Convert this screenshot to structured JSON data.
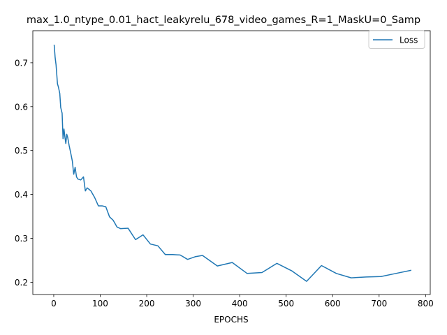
{
  "chart_data": {
    "type": "line",
    "title": "max_1.0_ntype_0.01_hact_leakyrelu_678_video_games_R=1_MaskU=0_Samp",
    "xlabel": "EPOCHS",
    "ylabel": "",
    "xlim": [
      -45,
      810
    ],
    "ylim": [
      0.172,
      0.773
    ],
    "xticks": [
      0,
      100,
      200,
      300,
      400,
      500,
      600,
      700,
      800
    ],
    "yticks": [
      0.2,
      0.3,
      0.4,
      0.5,
      0.6,
      0.7
    ],
    "grid": false,
    "legend_position": "upper right",
    "series": [
      {
        "name": "Loss",
        "color": "#1f77b4",
        "x": [
          1,
          3,
          5,
          8,
          10,
          13,
          15,
          18,
          20,
          22,
          24,
          26,
          28,
          30,
          33,
          36,
          40,
          43,
          46,
          49,
          52,
          58,
          64,
          68,
          72,
          80,
          88,
          96,
          104,
          112,
          120,
          128,
          136,
          144,
          160,
          176,
          192,
          208,
          224,
          240,
          256,
          272,
          288,
          304,
          320,
          352,
          384,
          416,
          448,
          480,
          512,
          544,
          576,
          608,
          640,
          672,
          704,
          736,
          768
        ],
        "y": [
          0.74,
          0.712,
          0.695,
          0.652,
          0.645,
          0.63,
          0.598,
          0.585,
          0.527,
          0.549,
          0.531,
          0.516,
          0.537,
          0.53,
          0.512,
          0.497,
          0.476,
          0.446,
          0.462,
          0.44,
          0.435,
          0.433,
          0.44,
          0.408,
          0.415,
          0.408,
          0.393,
          0.374,
          0.374,
          0.372,
          0.349,
          0.341,
          0.326,
          0.322,
          0.323,
          0.297,
          0.308,
          0.287,
          0.283,
          0.263,
          0.263,
          0.262,
          0.252,
          0.258,
          0.261,
          0.237,
          0.245,
          0.22,
          0.222,
          0.243,
          0.226,
          0.202,
          0.238,
          0.22,
          0.21,
          0.212,
          0.213,
          0.22,
          0.227
        ]
      }
    ]
  }
}
